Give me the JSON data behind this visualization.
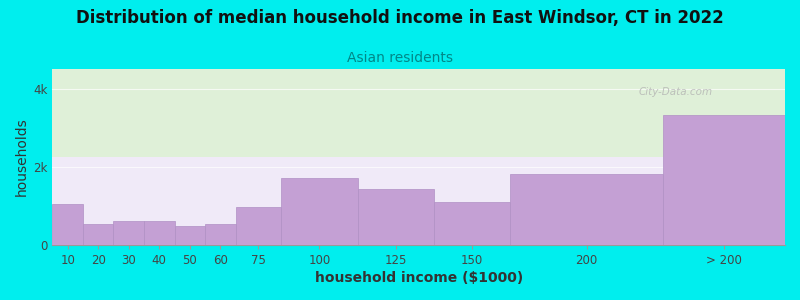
{
  "title": "Distribution of median household income in East Windsor, CT in 2022",
  "subtitle": "Asian residents",
  "xlabel": "household income ($1000)",
  "ylabel": "households",
  "background_color": "#00EEEE",
  "plot_bg_top": "#dff0d8",
  "plot_bg_bottom": "#f0eaf8",
  "bar_color": "#C4A0D4",
  "bar_edge_color": "#b090c4",
  "watermark": "City-Data.com",
  "title_fontsize": 12,
  "subtitle_fontsize": 10,
  "axis_label_fontsize": 10,
  "tick_fontsize": 8.5,
  "ylim": [
    0,
    4500
  ],
  "yticks": [
    0,
    2000,
    4000
  ],
  "ytick_labels": [
    "0",
    "2k",
    "4k"
  ],
  "bin_edges": [
    0,
    10,
    20,
    30,
    40,
    50,
    60,
    75,
    100,
    125,
    150,
    200,
    240
  ],
  "bin_labels": [
    "10",
    "20",
    "30",
    "40",
    "50",
    "60",
    "75",
    "100",
    "125",
    "150",
    "200",
    "> 200"
  ],
  "values": [
    1050,
    520,
    610,
    610,
    490,
    530,
    980,
    1700,
    1430,
    1100,
    1820,
    3320
  ],
  "gridline_color": "#ffffff",
  "gridline_alpha": 0.7
}
